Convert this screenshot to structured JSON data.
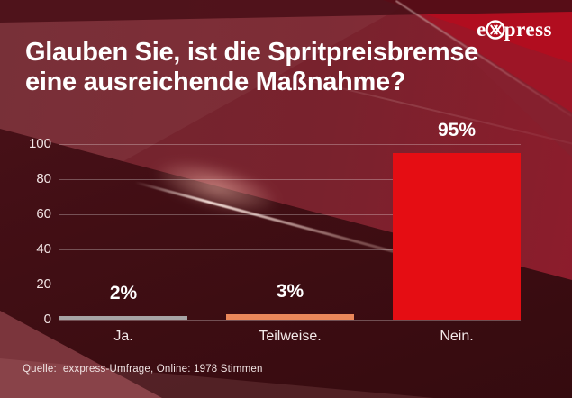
{
  "logo": {
    "prefix": "e",
    "suffix": "press",
    "emblem_icon": "double-x-circle-icon",
    "brand": "exxpress"
  },
  "title": {
    "line1": "Glauben Sie, ist die Spritpreisbremse",
    "line2": "eine ausreichende Maßnahme?"
  },
  "source": {
    "label": "Quelle:",
    "text": "exxpress-Umfrage, Online: 1978 Stimmen"
  },
  "colors": {
    "background_maroon": "#71262f",
    "background_dark": "#350b0f",
    "brand_red_band": "#b10d1f",
    "text": "#ffffff",
    "gridline": "rgba(255,255,255,0.28)"
  },
  "chart_data": {
    "type": "bar",
    "title": "Glauben Sie, ist die Spritpreisbremse eine ausreichende Maßnahme?",
    "categories": [
      "Ja.",
      "Teilweise.",
      "Nein."
    ],
    "values": [
      2,
      3,
      95
    ],
    "value_labels": [
      "2%",
      "3%",
      "95%"
    ],
    "bar_colors": [
      "#a7a4a5",
      "#ea875a",
      "#e50d13"
    ],
    "xlabel": "",
    "ylabel": "",
    "ylim": [
      0,
      100
    ],
    "yticks": [
      0,
      20,
      40,
      60,
      80,
      100
    ],
    "grid": true,
    "legend": false,
    "source": "Quelle: exxpress-Umfrage, Online: 1978 Stimmen"
  }
}
